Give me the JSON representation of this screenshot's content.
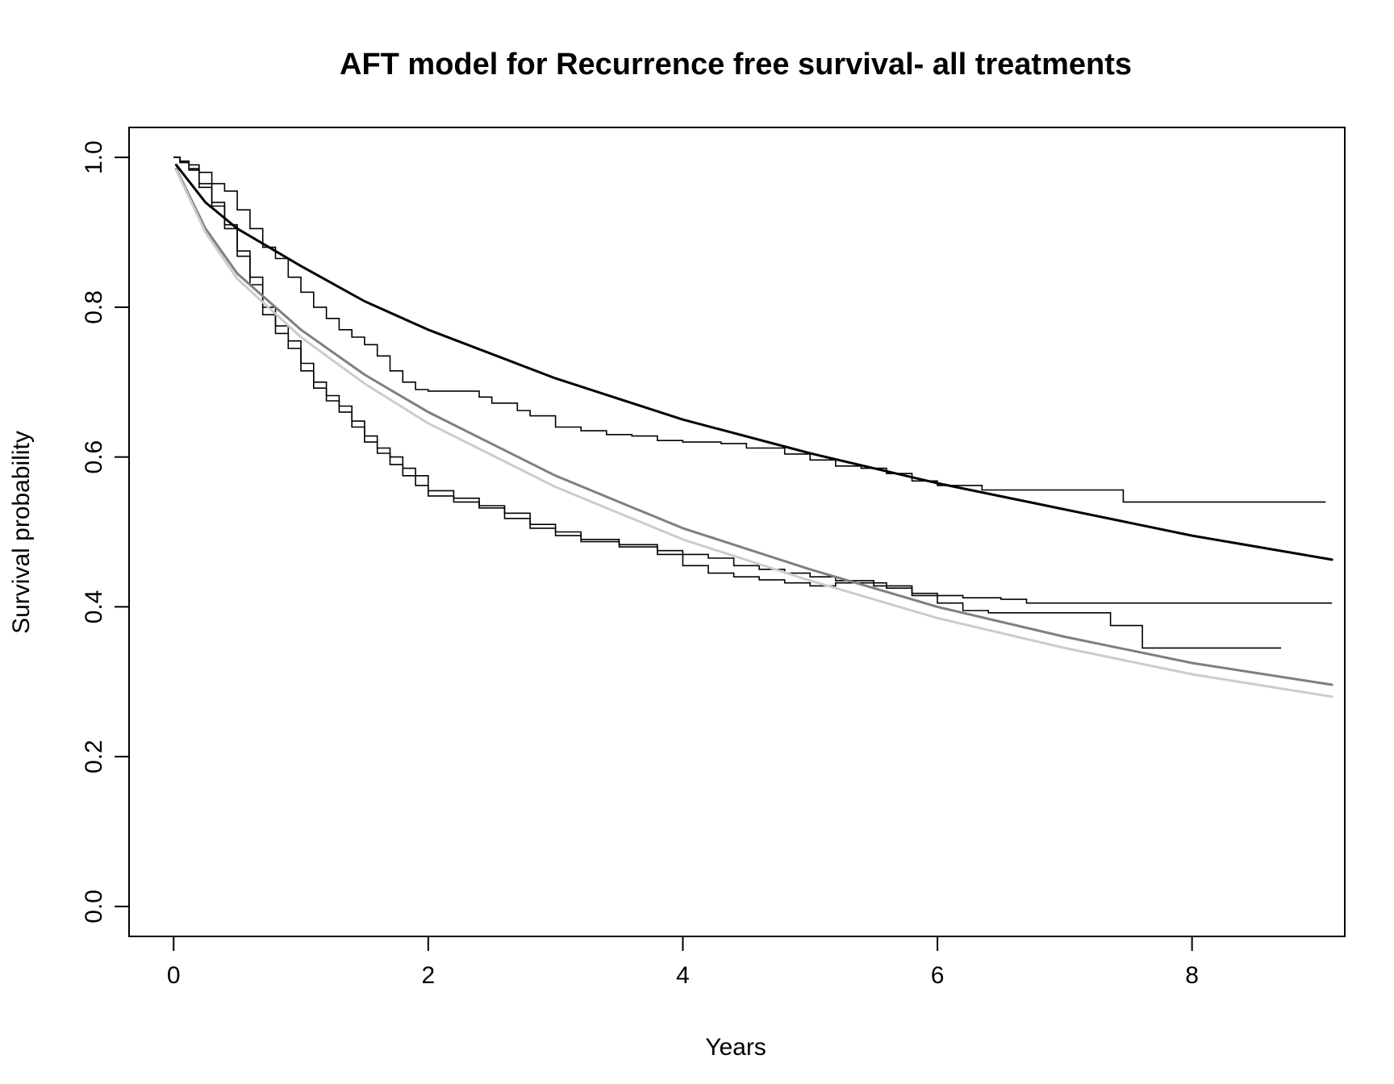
{
  "chart_data": {
    "type": "line",
    "title": "AFT model for Recurrence free survival- all treatments",
    "xlabel": "Years",
    "ylabel": "Survival probability",
    "xlim": [
      -0.35,
      9.2
    ],
    "ylim": [
      -0.04,
      1.04
    ],
    "x_ticks": [
      0,
      2,
      4,
      6,
      8
    ],
    "x_tick_labels": [
      "0",
      "2",
      "4",
      "6",
      "8"
    ],
    "y_ticks": [
      0.0,
      0.2,
      0.4,
      0.6,
      0.8,
      1.0
    ],
    "y_tick_labels": [
      "0.0",
      "0.2",
      "0.4",
      "0.6",
      "0.8",
      "1.0"
    ],
    "grid": false,
    "legend": "none",
    "colors": {
      "km": "#000000",
      "model_black": "#000000",
      "model_dark_gray": "#7f7f7f",
      "model_light_gray": "#cccccc"
    },
    "series": [
      {
        "kind": "km_step",
        "color": "#000000",
        "points": [
          [
            0,
            1.0
          ],
          [
            0.05,
            0.995
          ],
          [
            0.12,
            0.99
          ],
          [
            0.2,
            0.98
          ],
          [
            0.3,
            0.965
          ],
          [
            0.4,
            0.955
          ],
          [
            0.5,
            0.93
          ],
          [
            0.6,
            0.905
          ],
          [
            0.7,
            0.88
          ],
          [
            0.8,
            0.865
          ],
          [
            0.9,
            0.84
          ],
          [
            1.0,
            0.82
          ],
          [
            1.1,
            0.8
          ],
          [
            1.2,
            0.785
          ],
          [
            1.3,
            0.77
          ],
          [
            1.4,
            0.76
          ],
          [
            1.5,
            0.75
          ],
          [
            1.6,
            0.735
          ],
          [
            1.7,
            0.715
          ],
          [
            1.8,
            0.7
          ],
          [
            1.9,
            0.69
          ],
          [
            2.0,
            0.688
          ],
          [
            2.2,
            0.688
          ],
          [
            2.4,
            0.68
          ],
          [
            2.5,
            0.672
          ],
          [
            2.7,
            0.662
          ],
          [
            2.8,
            0.655
          ],
          [
            3.0,
            0.64
          ],
          [
            3.2,
            0.635
          ],
          [
            3.4,
            0.63
          ],
          [
            3.6,
            0.628
          ],
          [
            3.8,
            0.622
          ],
          [
            4.0,
            0.62
          ],
          [
            4.3,
            0.618
          ],
          [
            4.5,
            0.612
          ],
          [
            4.8,
            0.604
          ],
          [
            5.0,
            0.596
          ],
          [
            5.2,
            0.588
          ],
          [
            5.4,
            0.585
          ],
          [
            5.6,
            0.578
          ],
          [
            5.8,
            0.568
          ],
          [
            6.0,
            0.562
          ],
          [
            6.2,
            0.562
          ],
          [
            6.35,
            0.556
          ],
          [
            7.0,
            0.556
          ],
          [
            7.45,
            0.556
          ],
          [
            7.46,
            0.54
          ],
          [
            9.05,
            0.54
          ]
        ]
      },
      {
        "kind": "km_step",
        "color": "#000000",
        "points": [
          [
            0,
            1.0
          ],
          [
            0.05,
            0.995
          ],
          [
            0.12,
            0.985
          ],
          [
            0.2,
            0.965
          ],
          [
            0.3,
            0.94
          ],
          [
            0.4,
            0.91
          ],
          [
            0.5,
            0.875
          ],
          [
            0.6,
            0.84
          ],
          [
            0.7,
            0.8
          ],
          [
            0.8,
            0.775
          ],
          [
            0.9,
            0.755
          ],
          [
            1.0,
            0.725
          ],
          [
            1.1,
            0.7
          ],
          [
            1.2,
            0.682
          ],
          [
            1.3,
            0.668
          ],
          [
            1.4,
            0.648
          ],
          [
            1.5,
            0.628
          ],
          [
            1.6,
            0.612
          ],
          [
            1.7,
            0.6
          ],
          [
            1.8,
            0.585
          ],
          [
            1.9,
            0.575
          ],
          [
            2.0,
            0.555
          ],
          [
            2.2,
            0.545
          ],
          [
            2.4,
            0.535
          ],
          [
            2.6,
            0.525
          ],
          [
            2.8,
            0.51
          ],
          [
            3.0,
            0.5
          ],
          [
            3.2,
            0.49
          ],
          [
            3.5,
            0.483
          ],
          [
            3.8,
            0.475
          ],
          [
            4.0,
            0.47
          ],
          [
            4.2,
            0.465
          ],
          [
            4.4,
            0.455
          ],
          [
            4.6,
            0.45
          ],
          [
            4.8,
            0.445
          ],
          [
            5.0,
            0.44
          ],
          [
            5.2,
            0.435
          ],
          [
            5.5,
            0.428
          ],
          [
            5.8,
            0.418
          ],
          [
            6.0,
            0.415
          ],
          [
            6.2,
            0.412
          ],
          [
            6.5,
            0.41
          ],
          [
            6.7,
            0.405
          ],
          [
            9.1,
            0.405
          ]
        ]
      },
      {
        "kind": "km_step",
        "color": "#000000",
        "points": [
          [
            0,
            1.0
          ],
          [
            0.05,
            0.993
          ],
          [
            0.12,
            0.983
          ],
          [
            0.2,
            0.96
          ],
          [
            0.3,
            0.935
          ],
          [
            0.4,
            0.905
          ],
          [
            0.5,
            0.868
          ],
          [
            0.6,
            0.83
          ],
          [
            0.7,
            0.79
          ],
          [
            0.8,
            0.765
          ],
          [
            0.9,
            0.745
          ],
          [
            1.0,
            0.715
          ],
          [
            1.1,
            0.692
          ],
          [
            1.2,
            0.675
          ],
          [
            1.3,
            0.66
          ],
          [
            1.4,
            0.64
          ],
          [
            1.5,
            0.62
          ],
          [
            1.6,
            0.605
          ],
          [
            1.7,
            0.59
          ],
          [
            1.8,
            0.575
          ],
          [
            1.9,
            0.562
          ],
          [
            2.0,
            0.548
          ],
          [
            2.2,
            0.54
          ],
          [
            2.4,
            0.532
          ],
          [
            2.6,
            0.518
          ],
          [
            2.8,
            0.505
          ],
          [
            3.0,
            0.495
          ],
          [
            3.2,
            0.487
          ],
          [
            3.5,
            0.48
          ],
          [
            3.8,
            0.47
          ],
          [
            4.0,
            0.455
          ],
          [
            4.2,
            0.445
          ],
          [
            4.4,
            0.44
          ],
          [
            4.6,
            0.436
          ],
          [
            4.8,
            0.432
          ],
          [
            5.0,
            0.428
          ],
          [
            5.2,
            0.432
          ],
          [
            5.4,
            0.432
          ],
          [
            5.6,
            0.425
          ],
          [
            5.8,
            0.415
          ],
          [
            6.0,
            0.405
          ],
          [
            6.2,
            0.395
          ],
          [
            6.4,
            0.392
          ],
          [
            7.0,
            0.392
          ],
          [
            7.35,
            0.392
          ],
          [
            7.36,
            0.375
          ],
          [
            7.6,
            0.375
          ],
          [
            7.61,
            0.345
          ],
          [
            8.7,
            0.345
          ]
        ]
      },
      {
        "kind": "model_curve",
        "color": "#000000",
        "width": 3,
        "points": [
          [
            0.02,
            0.99
          ],
          [
            0.25,
            0.94
          ],
          [
            0.5,
            0.905
          ],
          [
            1,
            0.855
          ],
          [
            1.5,
            0.808
          ],
          [
            2,
            0.77
          ],
          [
            3,
            0.705
          ],
          [
            4,
            0.65
          ],
          [
            5,
            0.605
          ],
          [
            6,
            0.565
          ],
          [
            7,
            0.53
          ],
          [
            8,
            0.495
          ],
          [
            9.1,
            0.463
          ]
        ]
      },
      {
        "kind": "model_curve",
        "color": "#7f7f7f",
        "width": 3,
        "points": [
          [
            0.02,
            0.985
          ],
          [
            0.25,
            0.905
          ],
          [
            0.5,
            0.845
          ],
          [
            1,
            0.77
          ],
          [
            1.5,
            0.71
          ],
          [
            2,
            0.66
          ],
          [
            3,
            0.575
          ],
          [
            4,
            0.505
          ],
          [
            5,
            0.45
          ],
          [
            6,
            0.4
          ],
          [
            7,
            0.36
          ],
          [
            8,
            0.325
          ],
          [
            9.1,
            0.296
          ]
        ]
      },
      {
        "kind": "model_curve",
        "color": "#cccccc",
        "width": 3,
        "points": [
          [
            0.02,
            0.983
          ],
          [
            0.25,
            0.9
          ],
          [
            0.5,
            0.838
          ],
          [
            1,
            0.76
          ],
          [
            1.5,
            0.698
          ],
          [
            2,
            0.645
          ],
          [
            3,
            0.56
          ],
          [
            4,
            0.49
          ],
          [
            5,
            0.435
          ],
          [
            6,
            0.385
          ],
          [
            7,
            0.345
          ],
          [
            8,
            0.31
          ],
          [
            9.1,
            0.28
          ]
        ]
      }
    ]
  }
}
